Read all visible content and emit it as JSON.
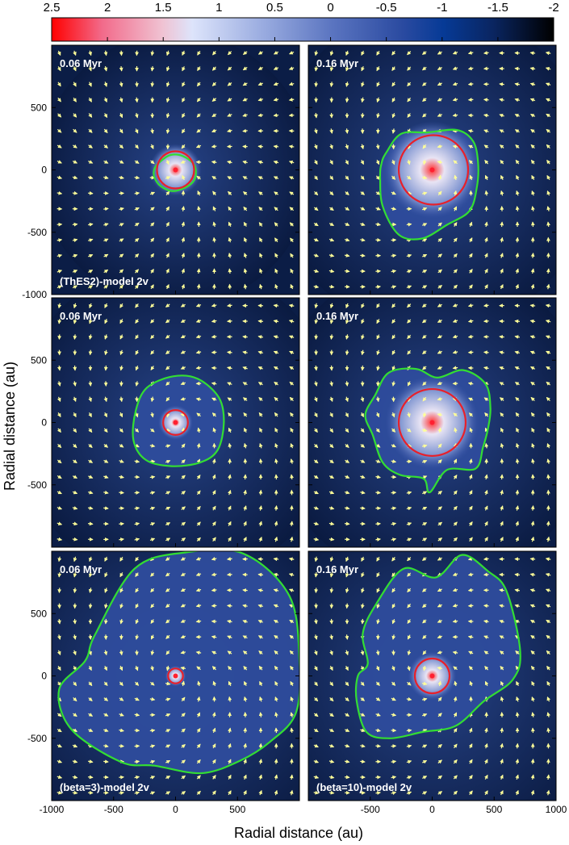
{
  "chart_data": {
    "type": "heatmap",
    "xlabel": "Radial distance (au)",
    "ylabel": "Radial distance (au)",
    "xlim": [
      -1000,
      1000
    ],
    "ylim": [
      -1000,
      1000
    ],
    "colorbar": {
      "range": [
        2.5,
        -2
      ],
      "ticks": [
        "2.5",
        "2",
        "1.5",
        "1",
        "0.5",
        "0",
        "-0.5",
        "-1",
        "-1.5",
        "-2"
      ],
      "colors": [
        "#ff0000",
        "#f4b6c4",
        "#cdd6f4",
        "#8c9fd9",
        "#4a63b0",
        "#1c3a8c",
        "#001a5e",
        "#000000"
      ]
    },
    "x_ticks": [
      -1000,
      -500,
      0,
      500,
      1000
    ],
    "y_ticks": [
      500,
      0,
      -500,
      -1000
    ],
    "colors": {
      "envelope": "#0c1e4a",
      "disk_contour": "#33dd33",
      "ring": "#e8202a",
      "arrows": "#ffff99"
    },
    "panels": [
      {
        "row": 0,
        "col": 0,
        "time": "0.06 Myr",
        "model": "(ThES2)-model 2v",
        "disk": [
          [
            -170,
            10
          ],
          [
            -120,
            70
          ],
          [
            -40,
            120
          ],
          [
            60,
            110
          ],
          [
            150,
            40
          ],
          [
            160,
            -60
          ],
          [
            100,
            -130
          ],
          [
            -20,
            -170
          ],
          [
            -120,
            -130
          ],
          [
            -170,
            -60
          ]
        ],
        "ring_radius": 150,
        "ring_center": [
          0,
          0
        ]
      },
      {
        "row": 0,
        "col": 1,
        "time": "0.16 Myr",
        "model": "",
        "disk": [
          [
            -370,
            140
          ],
          [
            -250,
            290
          ],
          [
            -40,
            300
          ],
          [
            200,
            320
          ],
          [
            330,
            230
          ],
          [
            370,
            60
          ],
          [
            360,
            -140
          ],
          [
            300,
            -330
          ],
          [
            120,
            -440
          ],
          [
            -80,
            -550
          ],
          [
            -270,
            -520
          ],
          [
            -400,
            -290
          ],
          [
            -420,
            -60
          ],
          [
            -410,
            50
          ]
        ],
        "ring_radius": 280,
        "ring_center": [
          10,
          0
        ]
      },
      {
        "row": 1,
        "col": 0,
        "time": "0.06 Myr",
        "model": "",
        "disk": [
          [
            -320,
            100
          ],
          [
            -230,
            280
          ],
          [
            -20,
            370
          ],
          [
            180,
            350
          ],
          [
            350,
            200
          ],
          [
            390,
            0
          ],
          [
            340,
            -220
          ],
          [
            200,
            -320
          ],
          [
            -30,
            -350
          ],
          [
            -240,
            -300
          ],
          [
            -340,
            -140
          ]
        ],
        "ring_radius": 100,
        "ring_center": [
          0,
          0
        ]
      },
      {
        "row": 1,
        "col": 1,
        "time": "0.16 Myr",
        "model": "",
        "disk": [
          [
            -460,
            220
          ],
          [
            -350,
            400
          ],
          [
            -130,
            430
          ],
          [
            40,
            360
          ],
          [
            250,
            420
          ],
          [
            430,
            310
          ],
          [
            470,
            120
          ],
          [
            450,
            -50
          ],
          [
            410,
            -200
          ],
          [
            350,
            -370
          ],
          [
            120,
            -380
          ],
          [
            -20,
            -560
          ],
          [
            -70,
            -450
          ],
          [
            -260,
            -420
          ],
          [
            -400,
            -320
          ],
          [
            -480,
            -100
          ],
          [
            -540,
            60
          ]
        ],
        "ring_radius": 270,
        "ring_center": [
          0,
          0
        ]
      },
      {
        "row": 2,
        "col": 0,
        "time": "0.06 Myr",
        "model": "(beta=3)-model 2v",
        "disk": [
          [
            -730,
            120
          ],
          [
            -650,
            330
          ],
          [
            -330,
            860
          ],
          [
            80,
            990
          ],
          [
            550,
            980
          ],
          [
            920,
            640
          ],
          [
            1000,
            120
          ],
          [
            970,
            -300
          ],
          [
            760,
            -530
          ],
          [
            520,
            -680
          ],
          [
            210,
            -780
          ],
          [
            -170,
            -720
          ],
          [
            -440,
            -690
          ],
          [
            -840,
            -430
          ],
          [
            -940,
            -110
          ]
        ],
        "ring_radius": 60,
        "ring_center": [
          0,
          0
        ]
      },
      {
        "row": 2,
        "col": 1,
        "time": "0.16 Myr",
        "model": "(beta=10)-model 2v",
        "disk": [
          [
            -450,
            580
          ],
          [
            -230,
            860
          ],
          [
            30,
            790
          ],
          [
            240,
            970
          ],
          [
            450,
            840
          ],
          [
            600,
            680
          ],
          [
            710,
            200
          ],
          [
            650,
            -30
          ],
          [
            420,
            -200
          ],
          [
            190,
            -400
          ],
          [
            -80,
            -450
          ],
          [
            -340,
            -500
          ],
          [
            -530,
            -450
          ],
          [
            -610,
            -200
          ],
          [
            -600,
            0
          ],
          [
            -520,
            100
          ],
          [
            -560,
            340
          ]
        ],
        "ring_radius": 140,
        "ring_center": [
          0,
          0
        ]
      }
    ]
  }
}
